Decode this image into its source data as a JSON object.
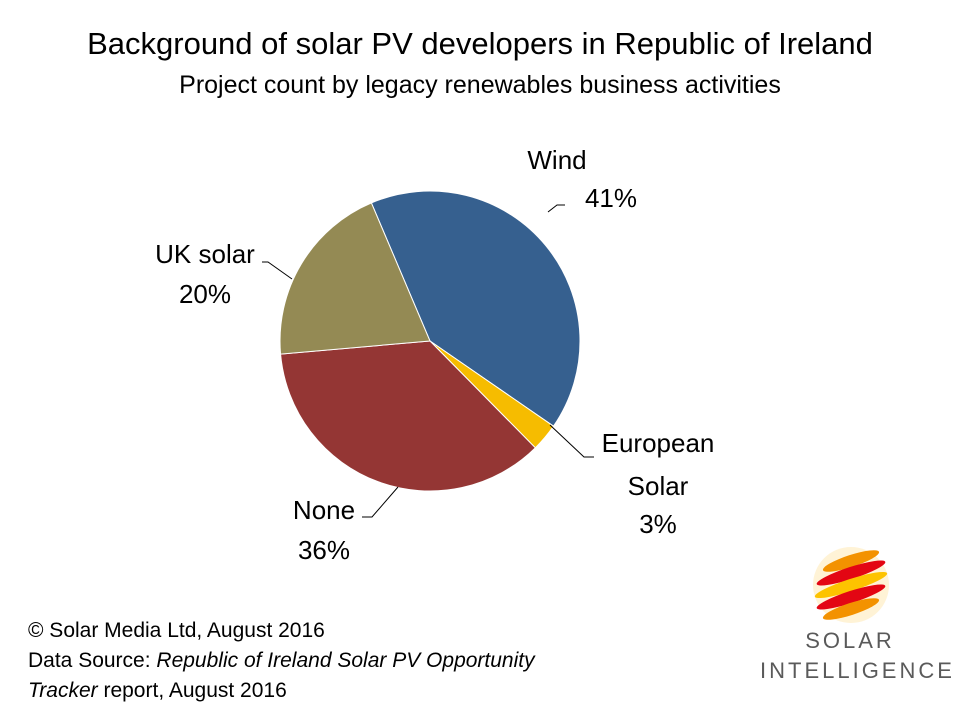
{
  "chart_data": {
    "type": "pie",
    "title": "Background of solar PV developers in Republic of Ireland",
    "subtitle": "Project count by legacy renewables business activities",
    "slices": [
      {
        "label": "Wind",
        "value": 41,
        "display": "41%",
        "color": "#36608f"
      },
      {
        "label": "European Solar",
        "value": 3,
        "display": "3%",
        "color": "#f6bc00"
      },
      {
        "label": "None",
        "value": 36,
        "display": "36%",
        "color": "#943634"
      },
      {
        "label": "UK solar",
        "value": 20,
        "display": "20%",
        "color": "#948a54"
      }
    ]
  },
  "footer": {
    "copyright": "© Solar Media Ltd, August 2016",
    "source_prefix": "Data Source: ",
    "source_italic": "Republic of Ireland Solar PV Opportunity",
    "source_italic_2": "Tracker",
    "source_suffix": " report, August 2016"
  },
  "logo": {
    "line1": "SOLAR",
    "line2": "INTELLIGENCE",
    "colors": [
      "#e30613",
      "#f39200",
      "#fdc300"
    ]
  }
}
